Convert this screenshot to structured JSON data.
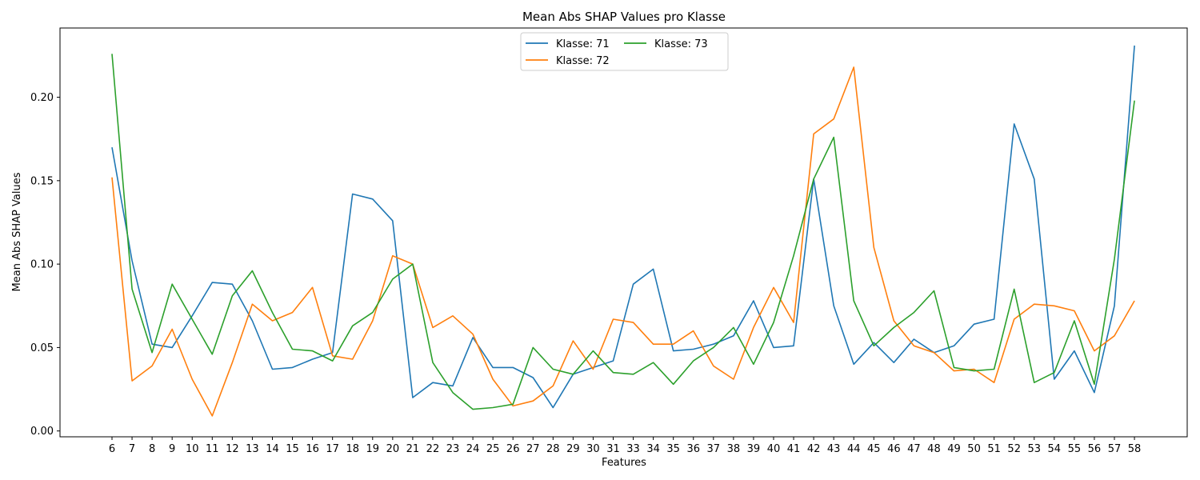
{
  "chart_data": {
    "type": "line",
    "title": "Mean Abs SHAP Values pro Klasse",
    "xlabel": "Features",
    "ylabel": "Mean Abs SHAP Values",
    "ylim": [
      -0.0035,
      0.2415
    ],
    "yticks": [
      "0.00",
      "0.05",
      "0.10",
      "0.15",
      "0.20"
    ],
    "grid": false,
    "legend_position": "top-center",
    "categories": [
      "6",
      "7",
      "8",
      "9",
      "10",
      "11",
      "12",
      "13",
      "14",
      "15",
      "16",
      "17",
      "18",
      "19",
      "20",
      "21",
      "22",
      "23",
      "24",
      "25",
      "26",
      "27",
      "28",
      "29",
      "30",
      "31",
      "33",
      "34",
      "35",
      "36",
      "37",
      "38",
      "39",
      "40",
      "41",
      "42",
      "43",
      "44",
      "45",
      "46",
      "47",
      "48",
      "49",
      "50",
      "51",
      "52",
      "53",
      "54",
      "55",
      "56",
      "57",
      "58"
    ],
    "series": [
      {
        "name": "Klasse: 71",
        "color": "#1f77b4",
        "values": [
          0.17,
          0.102,
          0.052,
          0.05,
          0.069,
          0.089,
          0.088,
          0.066,
          0.037,
          0.038,
          0.043,
          0.047,
          0.142,
          0.139,
          0.126,
          0.02,
          0.029,
          0.027,
          0.056,
          0.038,
          0.038,
          0.032,
          0.014,
          0.034,
          0.038,
          0.042,
          0.088,
          0.097,
          0.048,
          0.049,
          0.052,
          0.057,
          0.078,
          0.05,
          0.051,
          0.151,
          0.075,
          0.04,
          0.053,
          0.041,
          0.055,
          0.047,
          0.051,
          0.064,
          0.067,
          0.184,
          0.151,
          0.031,
          0.048,
          0.023,
          0.075,
          0.231
        ]
      },
      {
        "name": "Klasse: 72",
        "color": "#ff7f0e",
        "values": [
          0.152,
          0.03,
          0.039,
          0.061,
          0.031,
          0.009,
          0.041,
          0.076,
          0.066,
          0.071,
          0.086,
          0.045,
          0.043,
          0.066,
          0.105,
          0.1,
          0.062,
          0.069,
          0.058,
          0.031,
          0.015,
          0.018,
          0.027,
          0.054,
          0.037,
          0.067,
          0.065,
          0.052,
          0.052,
          0.06,
          0.039,
          0.031,
          0.062,
          0.086,
          0.065,
          0.178,
          0.187,
          0.218,
          0.11,
          0.066,
          0.051,
          0.047,
          0.036,
          0.037,
          0.029,
          0.067,
          0.076,
          0.075,
          0.072,
          0.048,
          0.057,
          0.078
        ]
      },
      {
        "name": "Klasse: 73",
        "color": "#2ca02c",
        "values": [
          0.226,
          0.085,
          0.047,
          0.088,
          0.067,
          0.046,
          0.081,
          0.096,
          0.071,
          0.049,
          0.048,
          0.042,
          0.063,
          0.071,
          0.091,
          0.1,
          0.041,
          0.023,
          0.013,
          0.014,
          0.016,
          0.05,
          0.037,
          0.034,
          0.048,
          0.035,
          0.034,
          0.041,
          0.028,
          0.042,
          0.05,
          0.062,
          0.04,
          0.065,
          0.105,
          0.151,
          0.176,
          0.078,
          0.051,
          0.062,
          0.071,
          0.084,
          0.038,
          0.036,
          0.037,
          0.085,
          0.029,
          0.035,
          0.066,
          0.028,
          0.103,
          0.198
        ]
      }
    ]
  }
}
